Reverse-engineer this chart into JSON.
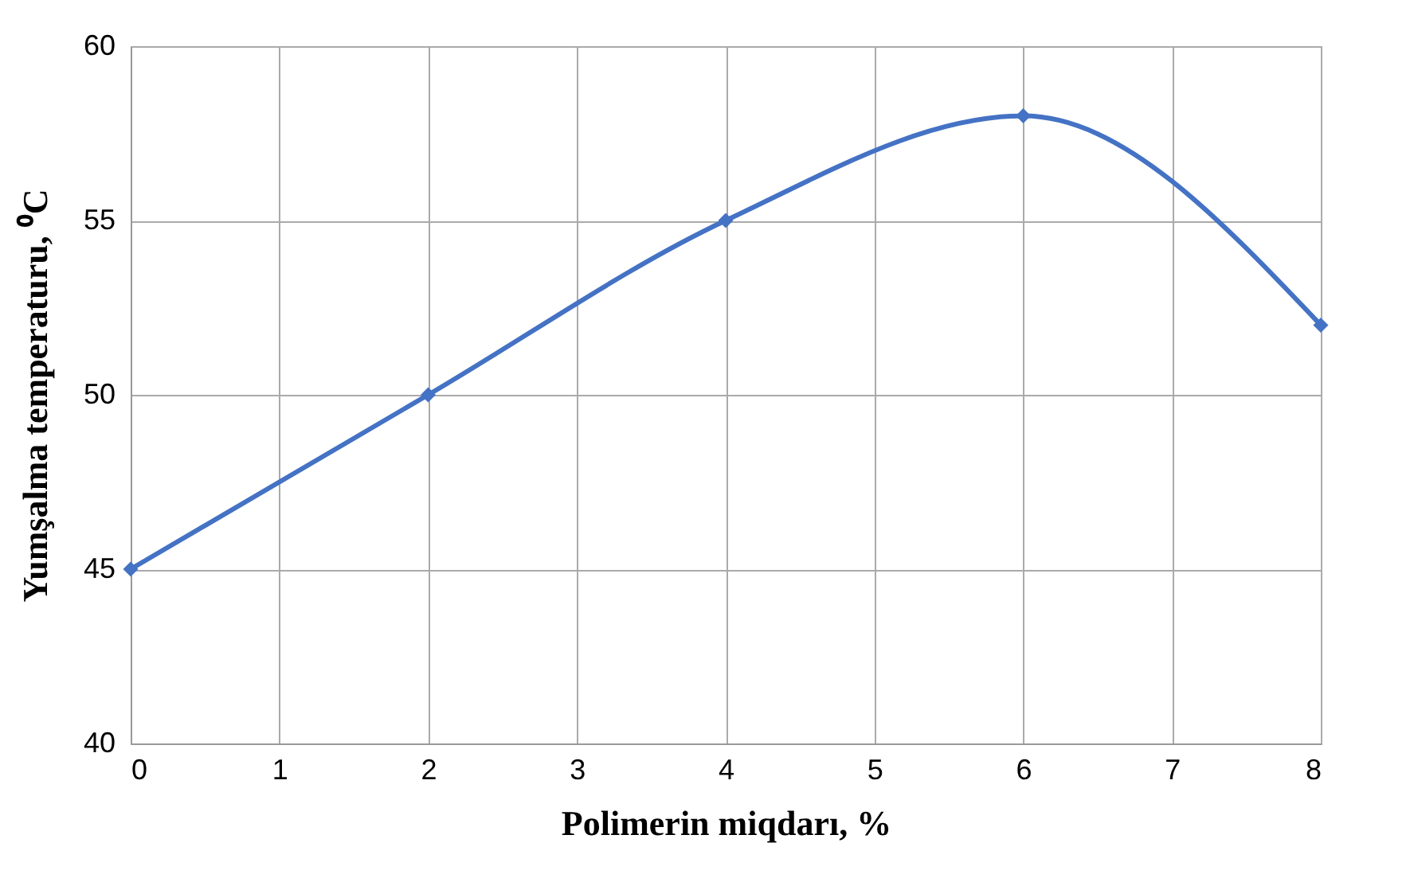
{
  "chart_data": {
    "type": "line",
    "xlabel": "Polimerin miqdarı,  %",
    "ylabel": "Yumşalma temperaturu, ⁰C",
    "x": [
      0,
      2,
      4,
      6,
      8
    ],
    "series": [
      {
        "color": "#4472c4",
        "values": [
          45,
          50,
          55,
          58,
          52
        ]
      }
    ],
    "xlim": [
      0,
      8
    ],
    "xticks": [
      0,
      1,
      2,
      3,
      4,
      5,
      6,
      7,
      8
    ],
    "ylim": [
      40,
      60
    ],
    "yticks": [
      40,
      45,
      50,
      55,
      60
    ],
    "grid": true,
    "marker": "diamond",
    "line_style": "solid"
  }
}
